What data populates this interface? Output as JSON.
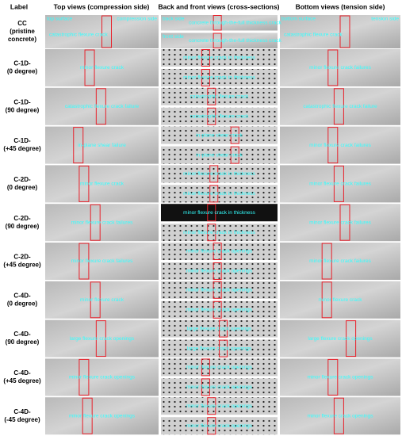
{
  "header": {
    "label": "Label",
    "columns": [
      "Top views (compression side)",
      "Back and front views (cross-sections)",
      "Bottom views (tension side)"
    ]
  },
  "rows": [
    {
      "label": [
        "CC",
        "(pristine",
        "concrete)"
      ],
      "top": [
        "top surface",
        "compression side",
        "catastrophic flexure crack"
      ],
      "back": [
        [
          "back side",
          "concrete through-the-full thickness crack"
        ],
        [
          "front side",
          "concrete through-the-full thickness crack"
        ]
      ],
      "bottom": [
        "bottom surface",
        "tension side",
        "catastrophic flexure crack"
      ]
    },
    {
      "label": [
        "C-1D-",
        "(0 degree)"
      ],
      "top": [
        "minor flexure crack"
      ],
      "back": [
        [
          "minor flexure crack in thickness"
        ],
        [
          "minor flexure crack in thickness"
        ]
      ],
      "bottom": [
        "minor flexure crack failures"
      ]
    },
    {
      "label": [
        "C-1D-",
        "(90 degree)"
      ],
      "top": [
        "catastrophic flexure crack failure"
      ],
      "back": [
        [
          "catastrophic flexure crack"
        ],
        [
          "catastrophic flexure crack"
        ]
      ],
      "bottom": [
        "catastrophic flexure crack failure"
      ]
    },
    {
      "label": [
        "C-1D-",
        "(+45 degree)"
      ],
      "top": [
        "in-plane shear failure"
      ],
      "back": [
        [
          "in-plane shear crack"
        ],
        [
          "in-plane shear crack"
        ]
      ],
      "bottom": [
        "minor flexure crack failures"
      ]
    },
    {
      "label": [
        "C-2D-",
        "(0 degree)"
      ],
      "top": [
        "minor flexure crack"
      ],
      "back": [
        [
          "minor flexure crack in thickness"
        ],
        [
          "minor flexure crack in thickness"
        ]
      ],
      "bottom": [
        "minor flexure crack failures"
      ]
    },
    {
      "label": [
        "C-2D-",
        "(90 degree)"
      ],
      "top": [
        "minor flexure crack failures"
      ],
      "back": [
        [
          "minor flexure crack in thickness"
        ],
        [
          "minor flexure crack in thickness"
        ]
      ],
      "bottom": [
        "minor flexure crack failures"
      ]
    },
    {
      "label": [
        "C-2D-",
        "(+45 degree)"
      ],
      "top": [
        "minor flexure crack failures"
      ],
      "back": [
        [
          "minor flexure crack openings"
        ],
        [
          "minor flexure crack openings"
        ]
      ],
      "bottom": [
        "minor flexure crack failures"
      ]
    },
    {
      "label": [
        "C-4D-",
        "(0 degree)"
      ],
      "top": [
        "minor flexure crack"
      ],
      "back": [
        [
          "minor flexure crack openings"
        ],
        [
          "minor flexure crack openings"
        ]
      ],
      "bottom": [
        "minor flexure crack"
      ]
    },
    {
      "label": [
        "C-4D-",
        "(90 degree)"
      ],
      "top": [
        "large flexure crack openings"
      ],
      "back": [
        [
          "large flexure crack openings"
        ],
        [
          "large flexure crack openings"
        ]
      ],
      "bottom": [
        "large flexure crack openings"
      ]
    },
    {
      "label": [
        "C-4D-",
        "(+45 degree)"
      ],
      "top": [
        "minor flexure crack openings"
      ],
      "back": [
        [
          "minor flexure crack openings"
        ],
        [
          "minor flexure crack openings"
        ]
      ],
      "bottom": [
        "minor flexure crack openings"
      ]
    },
    {
      "label": [
        "C-4D-",
        "(-45 degree)"
      ],
      "top": [
        "minor flexure crack openings"
      ],
      "back": [
        [
          "minor flexure crack openings"
        ],
        [
          "minor flexure crack openings"
        ]
      ],
      "bottom": [
        "minor flexure crack openings"
      ]
    }
  ]
}
